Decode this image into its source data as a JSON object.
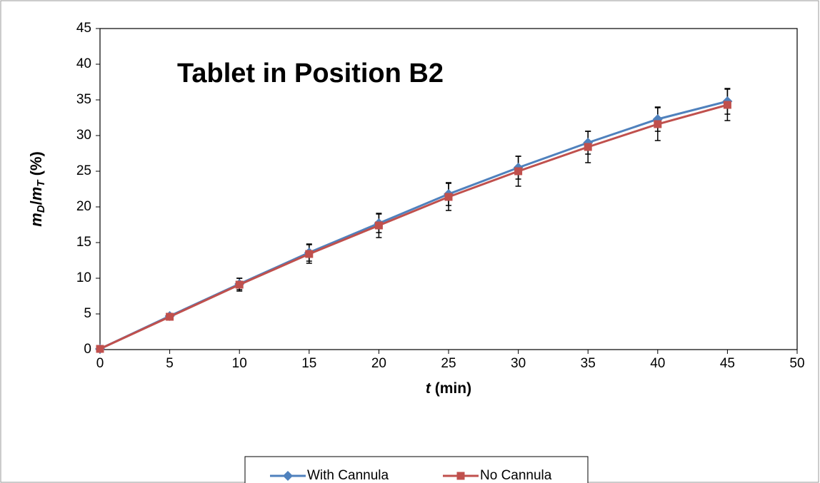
{
  "chart_data": {
    "type": "line",
    "title": "Tablet in Position B2",
    "xlabel": [
      "t",
      " (min)"
    ],
    "ylabel": [
      "m",
      "D",
      "/",
      "m",
      "T",
      " (%)"
    ],
    "x": [
      0,
      5,
      10,
      15,
      20,
      25,
      30,
      35,
      40,
      45
    ],
    "series": [
      {
        "name": "With Cannula",
        "color": "#4f81bd",
        "marker": "diamond",
        "values": [
          0.1,
          4.7,
          9.2,
          13.6,
          17.7,
          21.8,
          25.5,
          29.0,
          32.3,
          34.8
        ],
        "errors": [
          0,
          0.3,
          0.8,
          1.2,
          1.3,
          1.6,
          1.6,
          1.6,
          1.7,
          1.8
        ]
      },
      {
        "name": "No Cannula",
        "color": "#c0504d",
        "marker": "square",
        "values": [
          0.1,
          4.6,
          9.1,
          13.4,
          17.4,
          21.4,
          25.0,
          28.4,
          31.6,
          34.3
        ],
        "errors": [
          0,
          0.3,
          0.9,
          1.3,
          1.7,
          1.9,
          2.1,
          2.2,
          2.3,
          2.2
        ]
      }
    ],
    "xlim": [
      0,
      50
    ],
    "xticks": [
      0,
      5,
      10,
      15,
      20,
      25,
      30,
      35,
      40,
      45,
      50
    ],
    "ylim": [
      0,
      45
    ],
    "yticks": [
      0,
      5,
      10,
      15,
      20,
      25,
      30,
      35,
      40,
      45
    ],
    "grid": false,
    "legend": "bottom"
  }
}
